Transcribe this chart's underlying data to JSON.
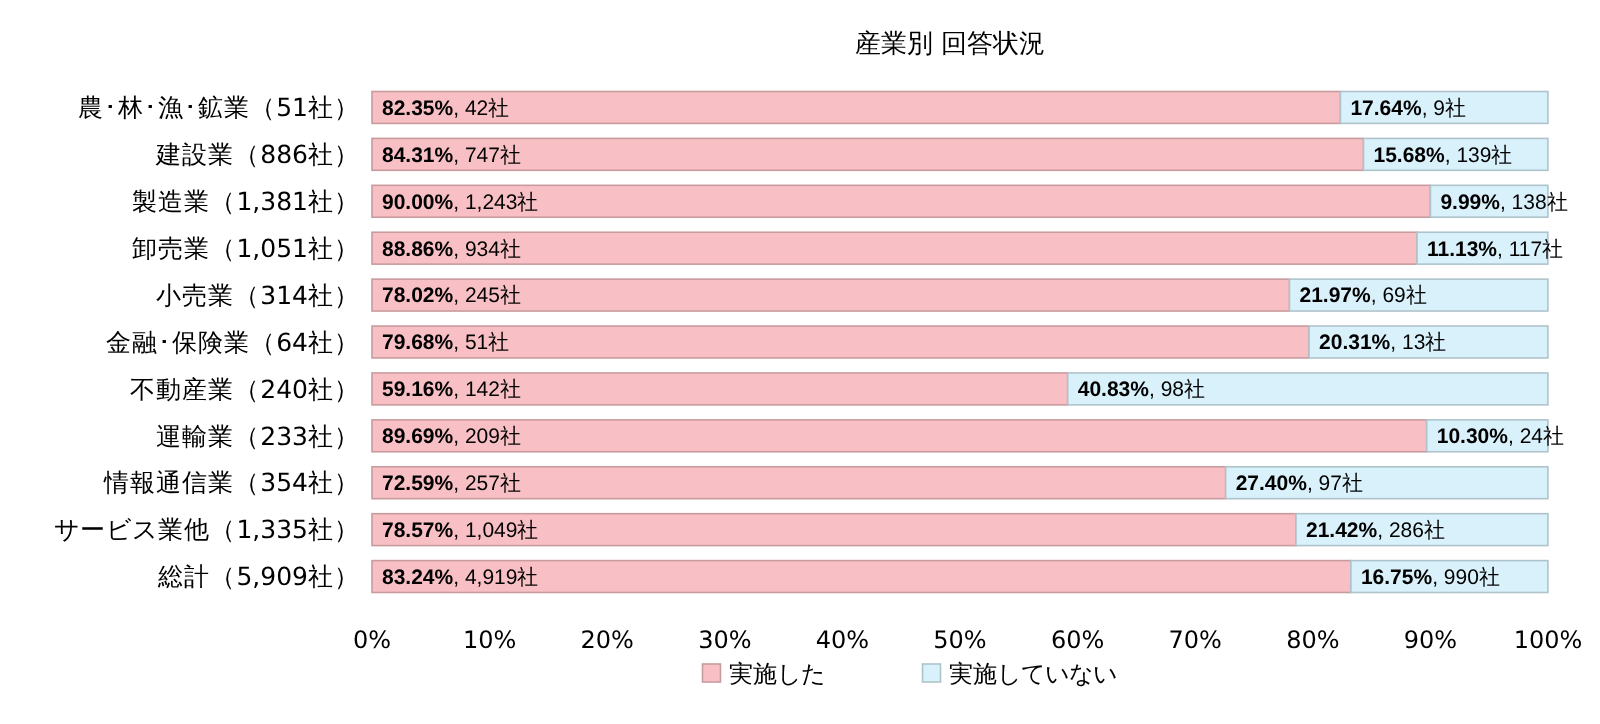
{
  "chart_data": {
    "type": "bar",
    "orientation": "horizontal",
    "stacked": true,
    "title": "産業別 回答状況",
    "categories": [
      "農･林･漁･鉱業（51社）",
      "建設業（886社）",
      "製造業（1,381社）",
      "卸売業（1,051社）",
      "小売業（314社）",
      "金融･保険業（64社）",
      "不動産業（240社）",
      "運輸業（233社）",
      "情報通信業（354社）",
      "サービス業他（1,335社）",
      "総計（5,909社）"
    ],
    "series": [
      {
        "name": "実施した",
        "color": "#f8c0c4",
        "values": [
          82.35,
          84.31,
          90.0,
          88.86,
          78.02,
          79.68,
          59.16,
          89.69,
          72.59,
          78.57,
          83.24
        ],
        "value_labels": [
          "82.35%, 42社",
          "84.31%, 747社",
          "90.00%, 1,243社",
          "88.86%, 934社",
          "78.02%, 245社",
          "79.68%, 51社",
          "59.16%, 142社",
          "89.69%, 209社",
          "72.59%, 257社",
          "78.57%, 1,049社",
          "83.24%, 4,919社"
        ]
      },
      {
        "name": "実施していない",
        "color": "#d9f1fb",
        "values": [
          17.64,
          15.68,
          9.99,
          11.13,
          21.97,
          20.31,
          40.83,
          10.3,
          27.4,
          21.42,
          16.75
        ],
        "value_labels": [
          "17.64%, 9社",
          "15.68%, 139社",
          "9.99%, 138社",
          "11.13%, 117社",
          "21.97%, 69社",
          "20.31%, 13社",
          "40.83%, 98社",
          "10.30%, 24社",
          "27.40%, 97社",
          "21.42%, 286社",
          "16.75%, 990社"
        ]
      }
    ],
    "xlim": [
      0,
      100
    ],
    "xticks": [
      {
        "value": 0,
        "label": "0%"
      },
      {
        "value": 10,
        "label": "10%"
      },
      {
        "value": 20,
        "label": "20%"
      },
      {
        "value": 30,
        "label": "30%"
      },
      {
        "value": 40,
        "label": "40%"
      },
      {
        "value": 50,
        "label": "50%"
      },
      {
        "value": 60,
        "label": "60%"
      },
      {
        "value": 70,
        "label": "70%"
      },
      {
        "value": 80,
        "label": "80%"
      },
      {
        "value": 90,
        "label": "90%"
      },
      {
        "value": 100,
        "label": "100%"
      }
    ],
    "legend": "bottom",
    "grid": false
  }
}
